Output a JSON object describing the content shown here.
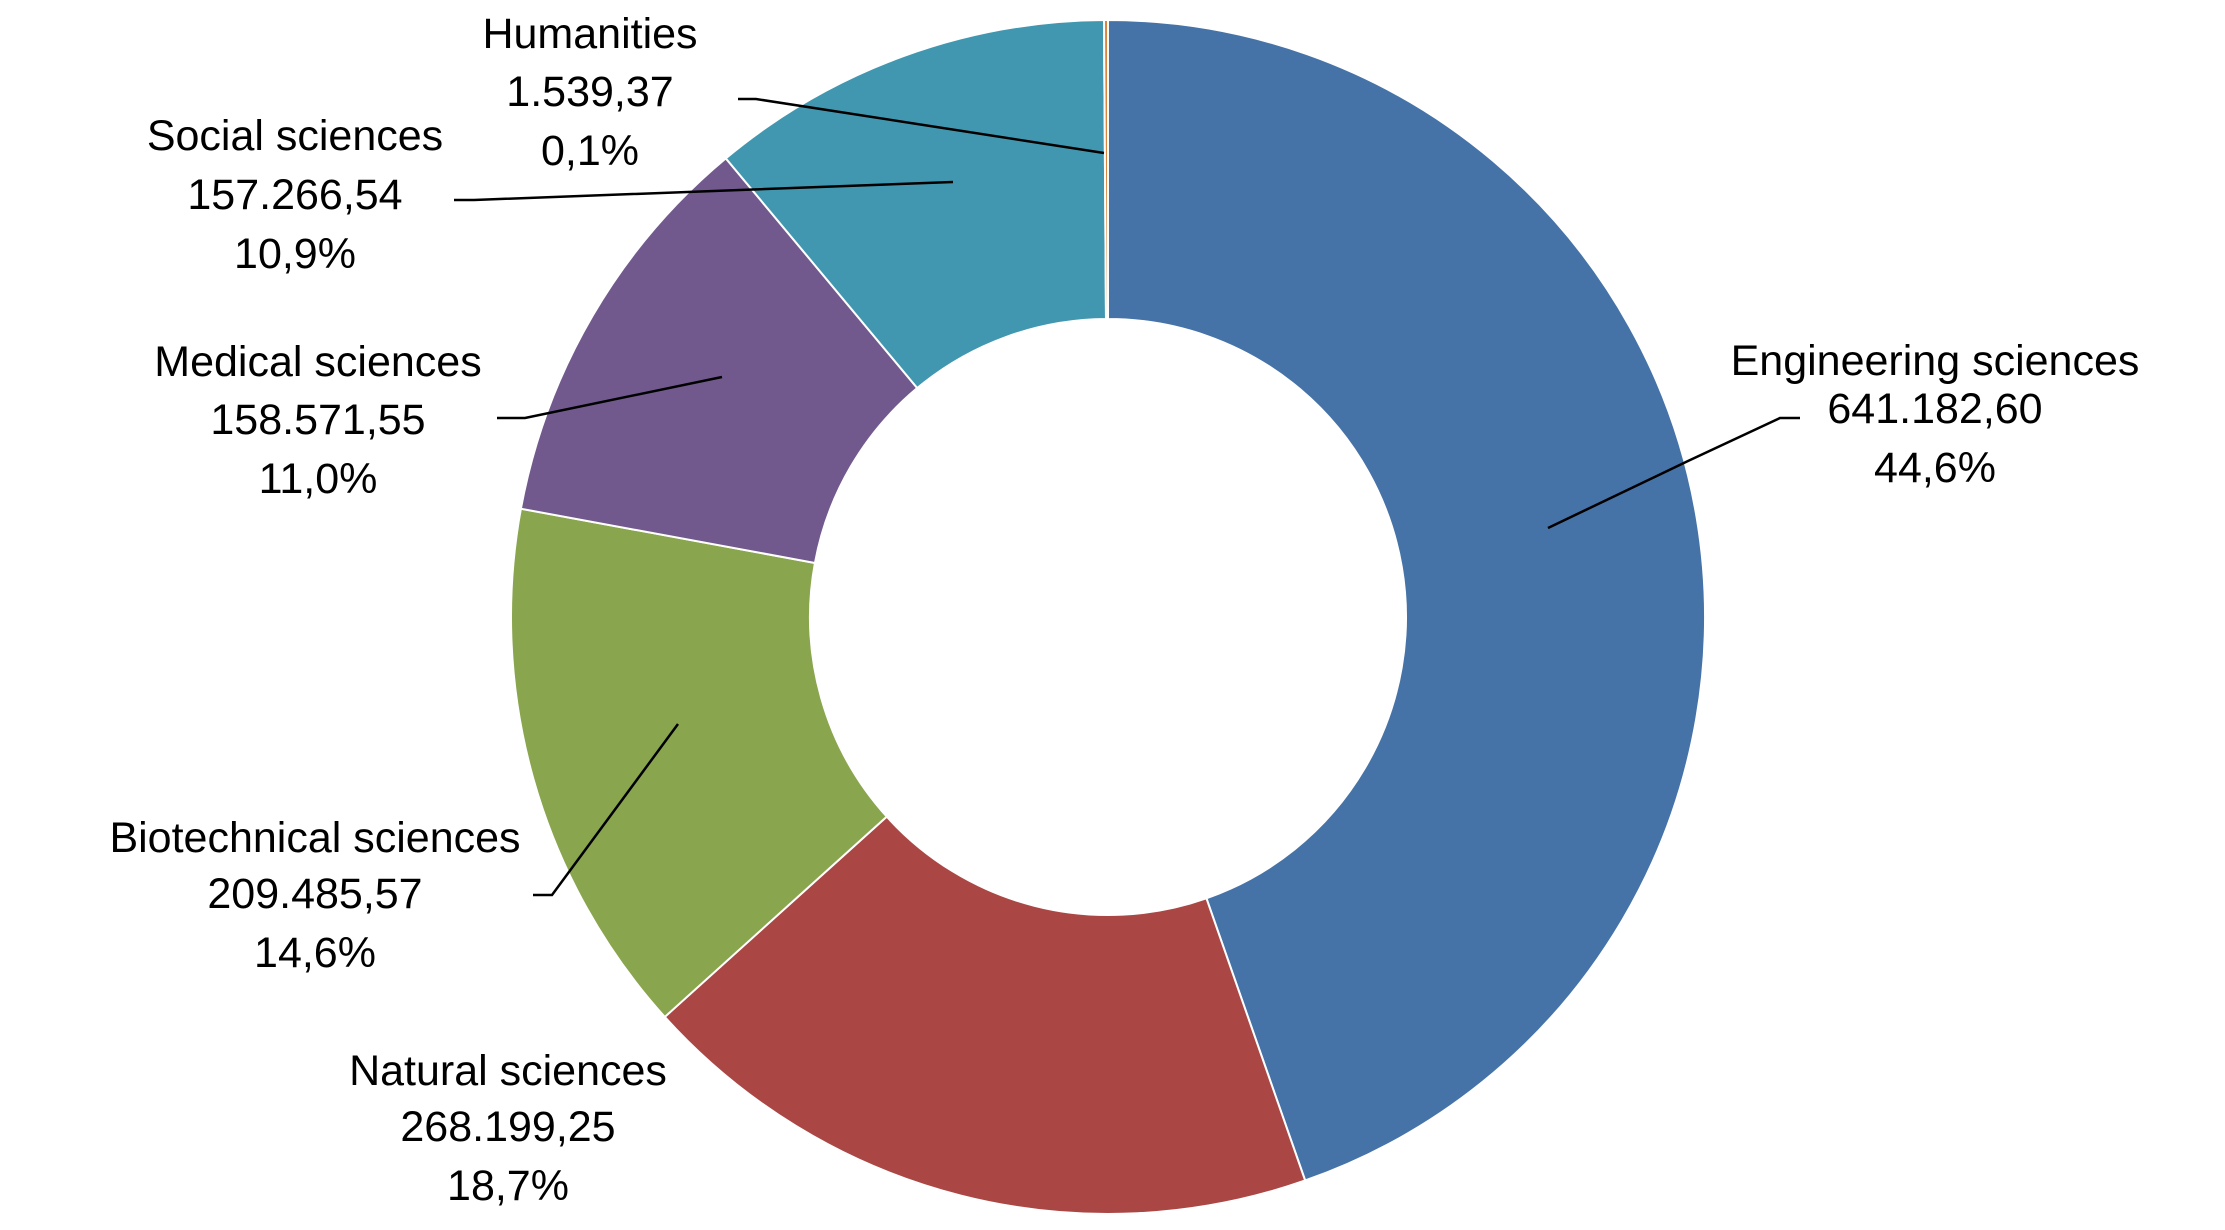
{
  "chart_data": {
    "type": "pie",
    "donut": true,
    "slices": [
      {
        "name": "Engineering sciences",
        "value": 641182.6,
        "value_label": "641.182,60",
        "percent_label": "44,6%",
        "color": "#4673A7"
      },
      {
        "name": "Natural sciences",
        "value": 268199.25,
        "value_label": "268.199,25",
        "percent_label": "18,7%",
        "color": "#AA4744"
      },
      {
        "name": "Biotechnical sciences",
        "value": 209485.57,
        "value_label": "209.485,57",
        "percent_label": "14,6%",
        "color": "#89A54E"
      },
      {
        "name": "Medical sciences",
        "value": 158571.55,
        "value_label": "158.571,55",
        "percent_label": "11,0%",
        "color": "#71598E"
      },
      {
        "name": "Social sciences",
        "value": 157266.54,
        "value_label": "157.266,54",
        "percent_label": "10,9%",
        "color": "#4197AF"
      },
      {
        "name": "Humanities",
        "value": 1539.37,
        "value_label": "1.539,37",
        "percent_label": "0,1%",
        "color": "#DB843D"
      }
    ]
  }
}
